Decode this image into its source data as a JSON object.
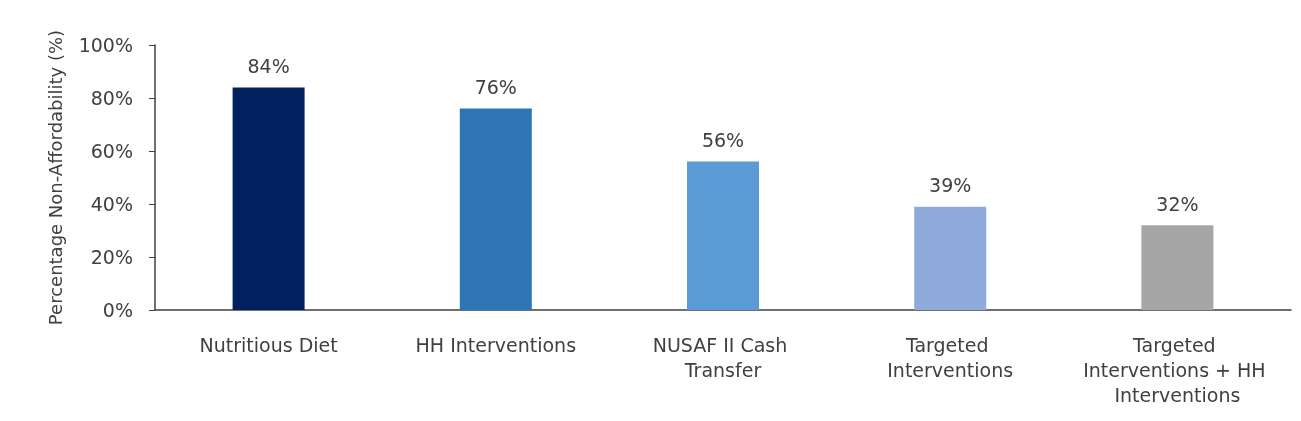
{
  "chart_data": {
    "type": "bar",
    "ylabel": "Percentage Non-Affordability (%)",
    "categories": [
      "Nutritious Diet",
      "HH Interventions",
      "NUSAF II Cash Transfer",
      "Targeted Interventions",
      "Targeted Interventions + HH Interventions"
    ],
    "values": [
      84,
      76,
      56,
      39,
      32
    ],
    "colors": [
      "#002060",
      "#2e75b6",
      "#5b9bd5",
      "#8eaadb",
      "#a6a6a6"
    ],
    "value_labels": [
      "84%",
      "76%",
      "56%",
      "39%",
      "32%"
    ],
    "ylim": [
      0,
      100
    ],
    "yticks": [
      {
        "value": 0,
        "label": "0%"
      },
      {
        "value": 20,
        "label": "20%"
      },
      {
        "value": 40,
        "label": "40%"
      },
      {
        "value": 60,
        "label": "60%"
      },
      {
        "value": 80,
        "label": "80%"
      },
      {
        "value": 100,
        "label": "100%"
      }
    ],
    "grid": false
  }
}
